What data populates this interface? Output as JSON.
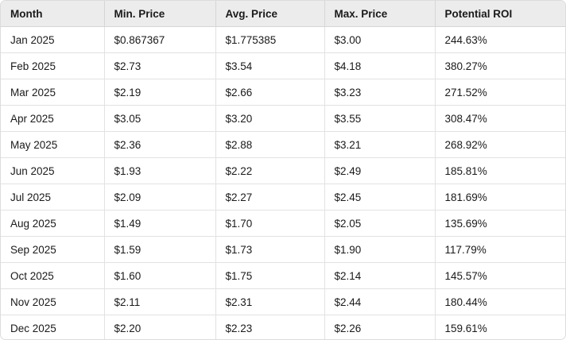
{
  "table": {
    "headers": [
      "Month",
      "Min. Price",
      "Avg. Price",
      "Max. Price",
      "Potential ROI"
    ],
    "rows": [
      [
        "Jan 2025",
        "$0.867367",
        "$1.775385",
        "$3.00",
        "244.63%"
      ],
      [
        "Feb 2025",
        "$2.73",
        "$3.54",
        "$4.18",
        "380.27%"
      ],
      [
        "Mar 2025",
        "$2.19",
        "$2.66",
        "$3.23",
        "271.52%"
      ],
      [
        "Apr 2025",
        "$3.05",
        "$3.20",
        "$3.55",
        "308.47%"
      ],
      [
        "May 2025",
        "$2.36",
        "$2.88",
        "$3.21",
        "268.92%"
      ],
      [
        "Jun 2025",
        "$1.93",
        "$2.22",
        "$2.49",
        "185.81%"
      ],
      [
        "Jul 2025",
        "$2.09",
        "$2.27",
        "$2.45",
        "181.69%"
      ],
      [
        "Aug 2025",
        "$1.49",
        "$1.70",
        "$2.05",
        "135.69%"
      ],
      [
        "Sep 2025",
        "$1.59",
        "$1.73",
        "$1.90",
        "117.79%"
      ],
      [
        "Oct 2025",
        "$1.60",
        "$1.75",
        "$2.14",
        "145.57%"
      ],
      [
        "Nov 2025",
        "$2.11",
        "$2.31",
        "$2.44",
        "180.44%"
      ],
      [
        "Dec 2025",
        "$2.20",
        "$2.23",
        "$2.26",
        "159.61%"
      ]
    ]
  }
}
